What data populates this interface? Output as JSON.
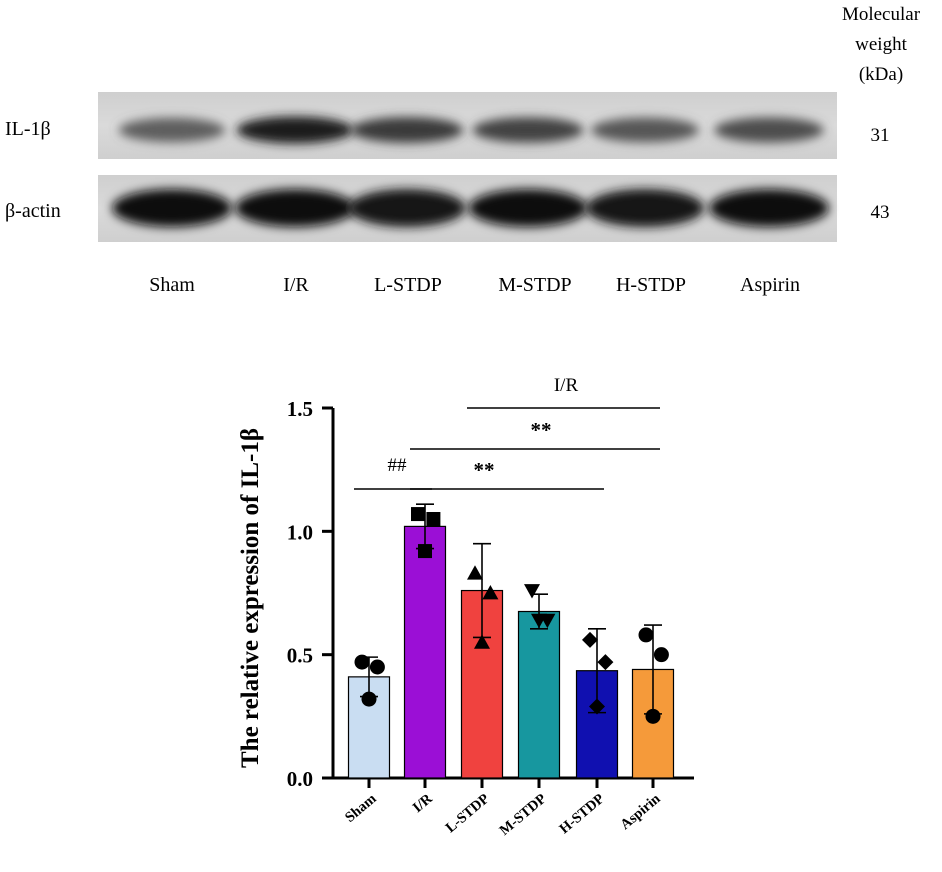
{
  "western_blot": {
    "mw_header": [
      "Molecular",
      "weight",
      "(kDa)"
    ],
    "lanes": [
      "Sham",
      "I/R",
      "L-STDP",
      "M-STDP",
      "H-STDP",
      "Aspirin"
    ],
    "rows": [
      {
        "label": "IL-1β",
        "mw": "31",
        "band_intensity": [
          0.55,
          0.9,
          0.75,
          0.7,
          0.6,
          0.65
        ]
      },
      {
        "label": "β-actin",
        "mw": "43",
        "band_intensity": [
          1.0,
          1.0,
          0.92,
          0.97,
          0.95,
          1.0
        ]
      }
    ]
  },
  "chart_data": {
    "type": "bar",
    "categories": [
      "Sham",
      "I/R",
      "L-STDP",
      "M-STDP",
      "H-STDP",
      "Aspirin"
    ],
    "values": [
      0.41,
      1.02,
      0.76,
      0.675,
      0.435,
      0.44
    ],
    "errors": [
      0.08,
      0.09,
      0.19,
      0.07,
      0.17,
      0.18
    ],
    "points": [
      [
        0.47,
        0.45,
        0.32
      ],
      [
        1.07,
        1.05,
        0.92
      ],
      [
        0.83,
        0.75,
        0.55
      ],
      [
        0.76,
        0.64,
        0.64
      ],
      [
        0.56,
        0.47,
        0.29
      ],
      [
        0.58,
        0.5,
        0.25
      ]
    ],
    "markers": [
      "circle",
      "square",
      "triangle-up",
      "triangle-down",
      "diamond",
      "circle"
    ],
    "colors": [
      "#c9ddf2",
      "#9b0fd6",
      "#f0423f",
      "#17979f",
      "#1010b0",
      "#f59a3a"
    ],
    "ylabel": "The relative expression of IL-1β",
    "xlabel": "",
    "ylim": [
      0,
      1.5
    ],
    "yticks": [
      "0.0",
      "0.5",
      "1.0",
      "1.5"
    ],
    "significance": [
      {
        "text": "##",
        "from": "Sham",
        "to": "I/R",
        "bold": false
      },
      {
        "text": "I/R",
        "from": "L-STDP",
        "to": "Aspirin",
        "bold": false
      },
      {
        "text": "**",
        "from": "I/R",
        "to": "Aspirin",
        "bold": true
      },
      {
        "text": "**",
        "from": "I/R",
        "to": "H-STDP",
        "bold": true
      }
    ]
  }
}
